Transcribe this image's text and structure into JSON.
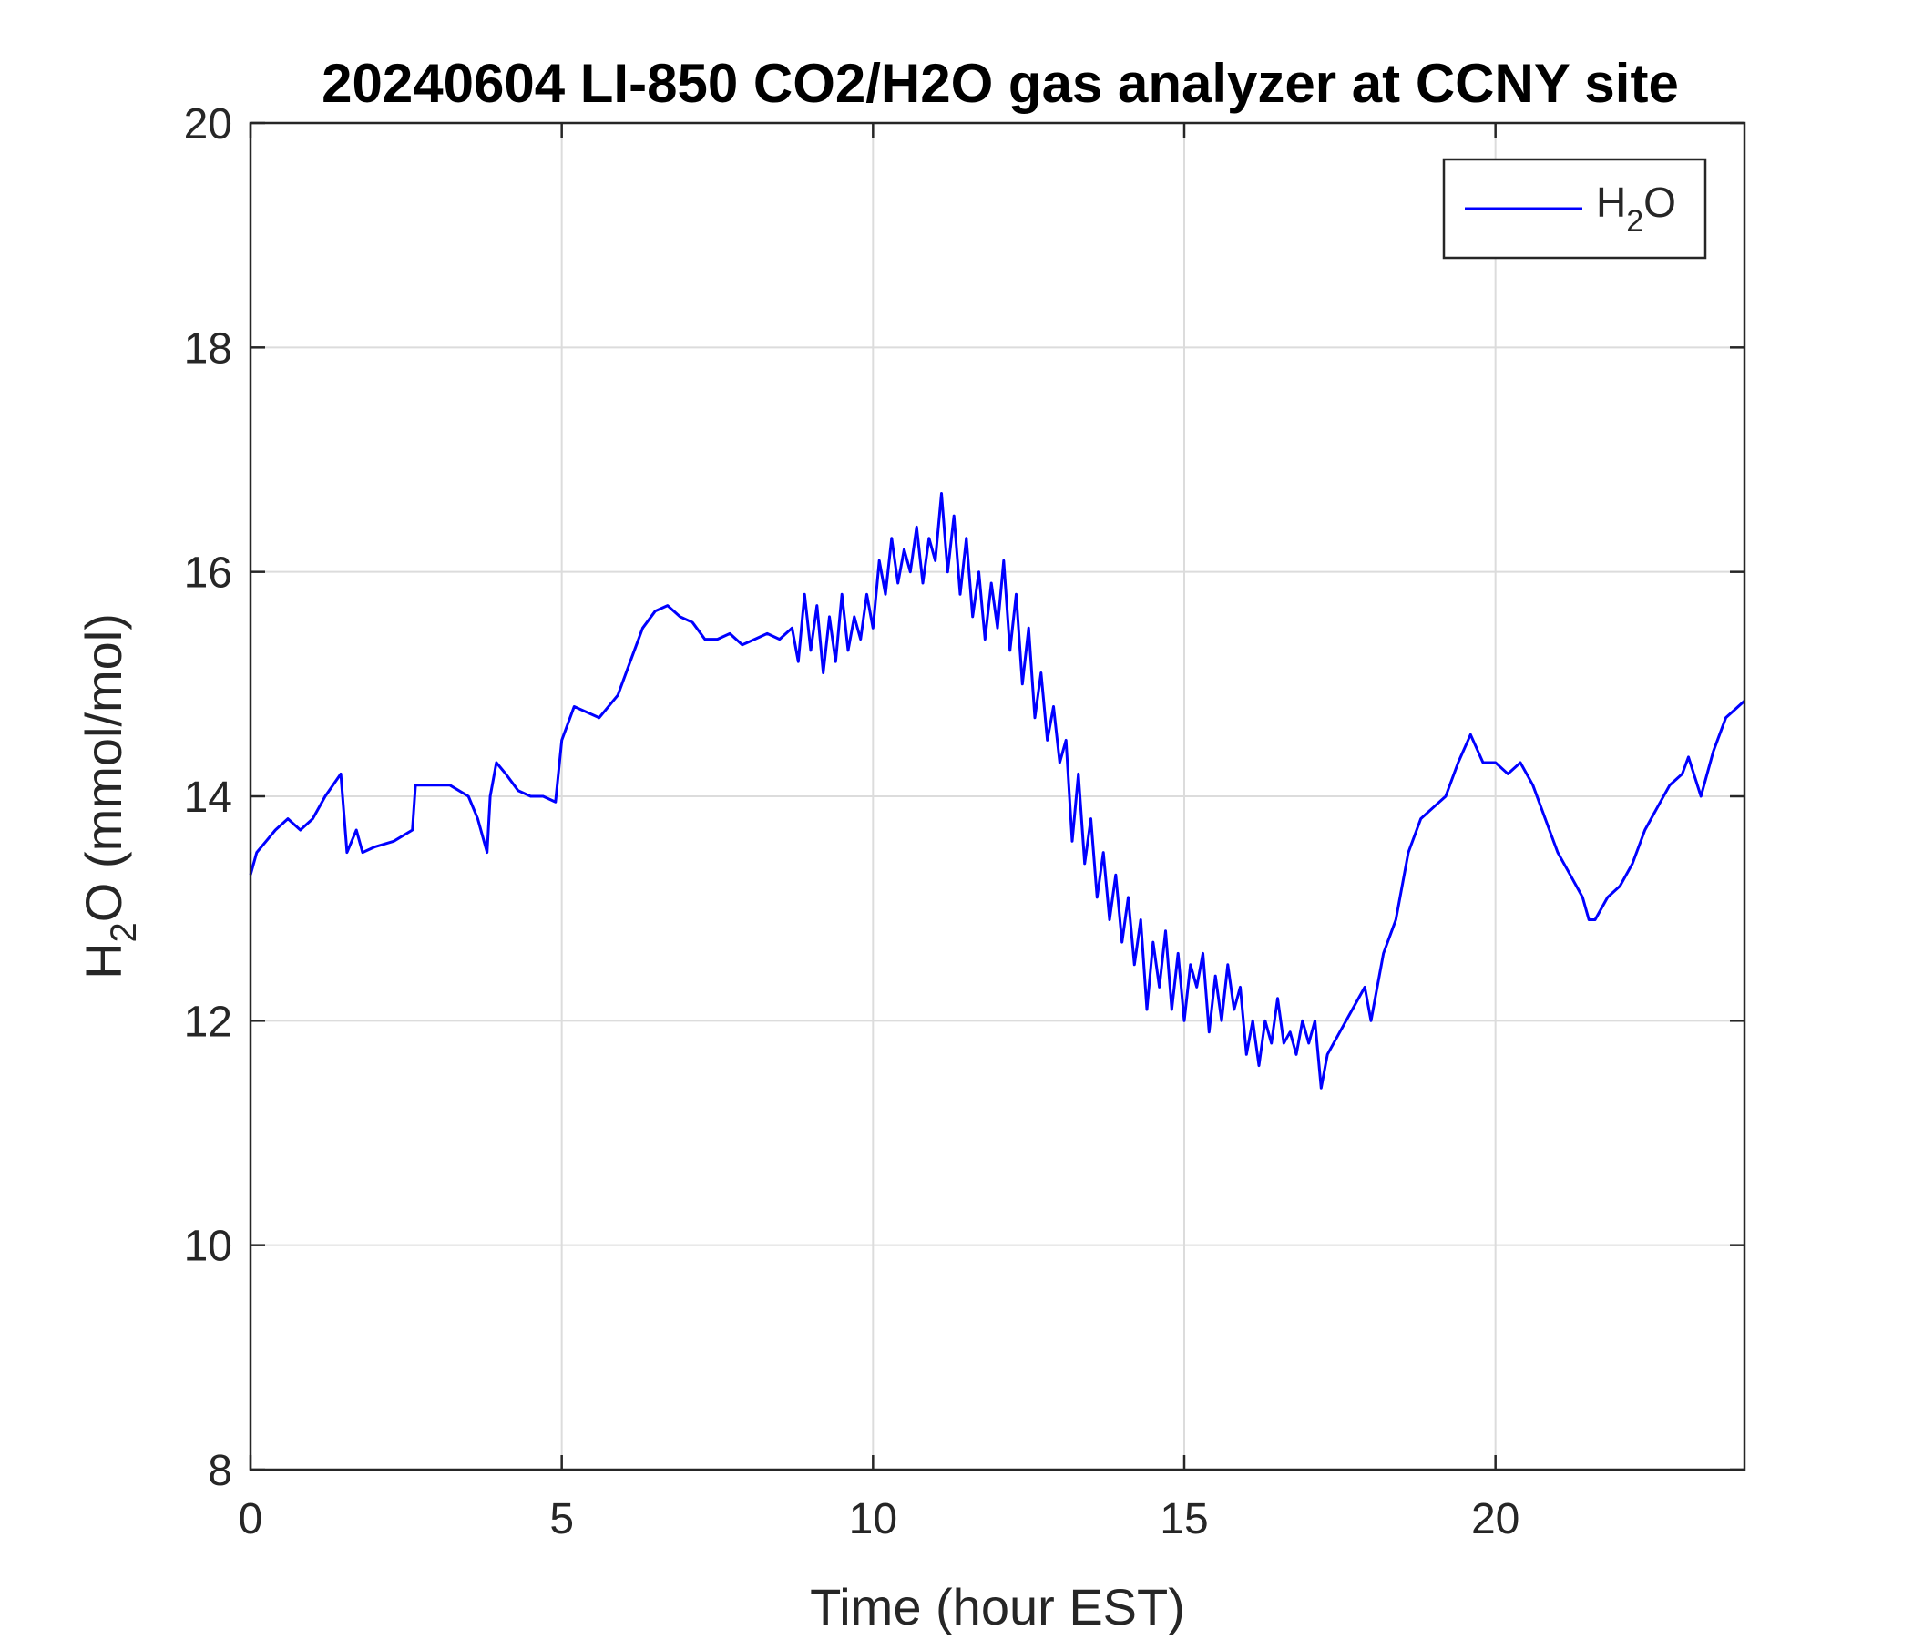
{
  "chart_data": {
    "type": "line",
    "title": "20240604 LI-850 CO2/H2O gas analyzer at CCNY site",
    "xlabel": "Time (hour EST)",
    "ylabel": {
      "main": "H",
      "sub": "2",
      "rest": "O (mmol/mol)"
    },
    "xlim": [
      0,
      24
    ],
    "ylim": [
      8,
      20
    ],
    "xticks": [
      0,
      5,
      10,
      15,
      20
    ],
    "yticks": [
      8,
      10,
      12,
      14,
      16,
      18,
      20
    ],
    "xtick_labels": [
      "0",
      "5",
      "10",
      "15",
      "20"
    ],
    "ytick_labels": [
      "8",
      "10",
      "12",
      "14",
      "16",
      "18",
      "20"
    ],
    "grid": true,
    "legend": {
      "position": "top-right",
      "entries": [
        {
          "main": "H",
          "sub": "2",
          "rest": "O",
          "color": "#0000ff"
        }
      ]
    },
    "series": [
      {
        "color": "#0000ff",
        "x": [
          0,
          0.1,
          0.25,
          0.4,
          0.6,
          0.8,
          1.0,
          1.2,
          1.45,
          1.55,
          1.7,
          1.8,
          2.0,
          2.3,
          2.6,
          2.65,
          2.8,
          3.0,
          3.2,
          3.5,
          3.65,
          3.8,
          3.85,
          3.95,
          4.1,
          4.3,
          4.5,
          4.7,
          4.9,
          5.0,
          5.2,
          5.4,
          5.6,
          5.9,
          6.1,
          6.3,
          6.5,
          6.7,
          6.9,
          7.1,
          7.3,
          7.5,
          7.7,
          7.9,
          8.1,
          8.3,
          8.5,
          8.7,
          8.8,
          8.9,
          9.0,
          9.1,
          9.2,
          9.3,
          9.4,
          9.5,
          9.6,
          9.7,
          9.8,
          9.9,
          10.0,
          10.1,
          10.2,
          10.3,
          10.4,
          10.5,
          10.6,
          10.7,
          10.8,
          10.9,
          11.0,
          11.1,
          11.2,
          11.3,
          11.4,
          11.5,
          11.6,
          11.7,
          11.8,
          11.9,
          12.0,
          12.1,
          12.2,
          12.3,
          12.4,
          12.5,
          12.6,
          12.7,
          12.8,
          12.9,
          13.0,
          13.1,
          13.2,
          13.3,
          13.4,
          13.5,
          13.6,
          13.7,
          13.8,
          13.9,
          14.0,
          14.1,
          14.2,
          14.3,
          14.4,
          14.5,
          14.6,
          14.7,
          14.8,
          14.9,
          15.0,
          15.1,
          15.2,
          15.3,
          15.4,
          15.5,
          15.6,
          15.7,
          15.8,
          15.9,
          16.0,
          16.1,
          16.2,
          16.3,
          16.4,
          16.5,
          16.6,
          16.7,
          16.8,
          16.9,
          17.0,
          17.1,
          17.2,
          17.3,
          17.5,
          17.7,
          17.9,
          18.0,
          18.2,
          18.4,
          18.6,
          18.8,
          19.0,
          19.2,
          19.4,
          19.6,
          19.8,
          20.0,
          20.2,
          20.4,
          20.6,
          20.8,
          21.0,
          21.2,
          21.4,
          21.5,
          21.6,
          21.8,
          22.0,
          22.2,
          22.4,
          22.6,
          22.8,
          23.0,
          23.1,
          23.3,
          23.5,
          23.7,
          24.0
        ],
        "y": [
          13.3,
          13.5,
          13.6,
          13.7,
          13.8,
          13.7,
          13.8,
          14.0,
          14.2,
          13.5,
          13.7,
          13.5,
          13.55,
          13.6,
          13.7,
          14.1,
          14.1,
          14.1,
          14.1,
          14.0,
          13.8,
          13.5,
          14.0,
          14.3,
          14.2,
          14.05,
          14.0,
          14.0,
          13.95,
          14.5,
          14.8,
          14.75,
          14.7,
          14.9,
          15.2,
          15.5,
          15.65,
          15.7,
          15.6,
          15.55,
          15.4,
          15.4,
          15.45,
          15.35,
          15.4,
          15.45,
          15.4,
          15.5,
          15.2,
          15.8,
          15.3,
          15.7,
          15.1,
          15.6,
          15.2,
          15.8,
          15.3,
          15.6,
          15.4,
          15.8,
          15.5,
          16.1,
          15.8,
          16.3,
          15.9,
          16.2,
          16.0,
          16.4,
          15.9,
          16.3,
          16.1,
          16.7,
          16.0,
          16.5,
          15.8,
          16.3,
          15.6,
          16.0,
          15.4,
          15.9,
          15.5,
          16.1,
          15.3,
          15.8,
          15.0,
          15.5,
          14.7,
          15.1,
          14.5,
          14.8,
          14.3,
          14.5,
          13.6,
          14.2,
          13.4,
          13.8,
          13.1,
          13.5,
          12.9,
          13.3,
          12.7,
          13.1,
          12.5,
          12.9,
          12.1,
          12.7,
          12.3,
          12.8,
          12.1,
          12.6,
          12.0,
          12.5,
          12.3,
          12.6,
          11.9,
          12.4,
          12.0,
          12.5,
          12.1,
          12.3,
          11.7,
          12.0,
          11.6,
          12.0,
          11.8,
          12.2,
          11.8,
          11.9,
          11.7,
          12.0,
          11.8,
          12.0,
          11.4,
          11.7,
          11.9,
          12.1,
          12.3,
          12.0,
          12.6,
          12.9,
          13.5,
          13.8,
          13.9,
          14.0,
          14.3,
          14.55,
          14.3,
          14.3,
          14.2,
          14.3,
          14.1,
          13.8,
          13.5,
          13.3,
          13.1,
          12.9,
          12.9,
          13.1,
          13.2,
          13.4,
          13.7,
          13.9,
          14.1,
          14.2,
          14.35,
          14.0,
          14.4,
          14.7,
          14.85
        ]
      }
    ]
  }
}
